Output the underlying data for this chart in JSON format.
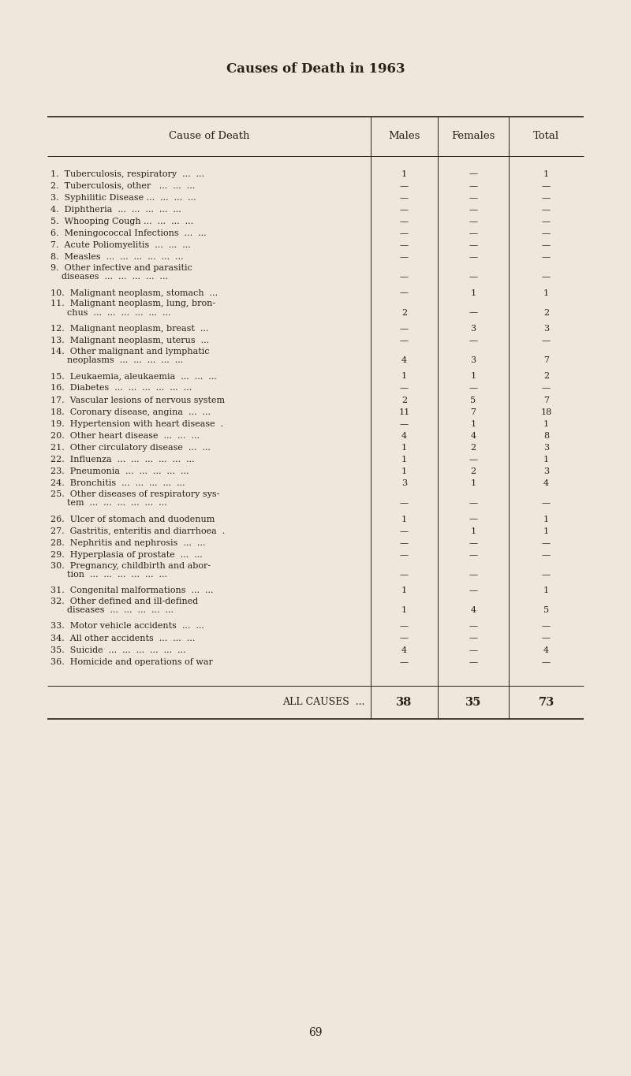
{
  "title": "Causes of Death in 1963",
  "background_color": "#ede8da",
  "text_color": "#2a2018",
  "header": [
    "Cause of Death",
    "Males",
    "Females",
    "Total"
  ],
  "rows": [
    [
      "1.  Tuberculosis, respiratory  ...  ...",
      "1",
      "—",
      "1",
      1
    ],
    [
      "2.  Tuberculosis, other   ...  ...  ...",
      "—",
      "—",
      "—",
      1
    ],
    [
      "3.  Syphilitic Disease ...  ...  ...  ...",
      "—",
      "—",
      "—",
      1
    ],
    [
      "4.  Diphtheria  ...  ...  ...  ...  ...",
      "—",
      "—",
      "—",
      1
    ],
    [
      "5.  Whooping Cough ...  ...  ...  ...",
      "—",
      "—",
      "—",
      1
    ],
    [
      "6.  Meningococcal Infections  ...  ...",
      "—",
      "—",
      "—",
      1
    ],
    [
      "7.  Acute Poliomyelitis  ...  ...  ...",
      "—",
      "—",
      "—",
      1
    ],
    [
      "8.  Measles  ...  ...  ...  ...  ...  ...",
      "—",
      "—",
      "—",
      1
    ],
    [
      "9.  Other infective and parasitic|    diseases  ...  ...  ...  ...  ...",
      "—",
      "—",
      "—",
      2
    ],
    [
      "10.  Malignant neoplasm, stomach  ...",
      "—",
      "1",
      "1",
      1
    ],
    [
      "11.  Malignant neoplasm, lung, bron-|      chus  ...  ...  ...  ...  ...  ...",
      "2",
      "—",
      "2",
      2
    ],
    [
      "12.  Malignant neoplasm, breast  ...",
      "—",
      "3",
      "3",
      1
    ],
    [
      "13.  Malignant neoplasm, uterus  ...",
      "—",
      "—",
      "—",
      1
    ],
    [
      "14.  Other malignant and lymphatic|      neoplasms  ...  ...  ...  ...  ...",
      "4",
      "3",
      "7",
      2
    ],
    [
      "15.  Leukaemia, aleukaemia  ...  ...  ...",
      "1",
      "1",
      "2",
      1
    ],
    [
      "16.  Diabetes  ...  ...  ...  ...  ...  ...",
      "—",
      "—",
      "—",
      1
    ],
    [
      "17.  Vascular lesions of nervous system",
      "2",
      "5",
      "7",
      1
    ],
    [
      "18.  Coronary disease, angina  ...  ...",
      "11",
      "7",
      "18",
      1
    ],
    [
      "19.  Hypertension with heart disease  .",
      "—",
      "1",
      "1",
      1
    ],
    [
      "20.  Other heart disease  ...  ...  ...",
      "4",
      "4",
      "8",
      1
    ],
    [
      "21.  Other circulatory disease  ...  ...",
      "1",
      "2",
      "3",
      1
    ],
    [
      "22.  Influenza  ...  ...  ...  ...  ...  ...",
      "1",
      "—",
      "1",
      1
    ],
    [
      "23.  Pneumonia  ...  ...  ...  ...  ...",
      "1",
      "2",
      "3",
      1
    ],
    [
      "24.  Bronchitis  ...  ...  ...  ...  ...",
      "3",
      "1",
      "4",
      1
    ],
    [
      "25.  Other diseases of respiratory sys-|      tem  ...  ...  ...  ...  ...  ...",
      "—",
      "—",
      "—",
      2
    ],
    [
      "26.  Ulcer of stomach and duodenum",
      "1",
      "—",
      "1",
      1
    ],
    [
      "27.  Gastritis, enteritis and diarrhoea  .",
      "—",
      "1",
      "1",
      1
    ],
    [
      "28.  Nephritis and nephrosis  ...  ...",
      "—",
      "—",
      "—",
      1
    ],
    [
      "29.  Hyperplasia of prostate  ...  ...",
      "—",
      "—",
      "—",
      1
    ],
    [
      "30.  Pregnancy, childbirth and abor-|      tion  ...  ...  ...  ...  ...  ...",
      "—",
      "—",
      "—",
      2
    ],
    [
      "31.  Congenital malformations  ...  ...",
      "1",
      "—",
      "1",
      1
    ],
    [
      "32.  Other defined and ill-defined|      diseases  ...  ...  ...  ...  ...",
      "1",
      "4",
      "5",
      2
    ],
    [
      "33.  Motor vehicle accidents  ...  ...",
      "—",
      "—",
      "—",
      1
    ],
    [
      "34.  All other accidents  ...  ...  ...",
      "—",
      "—",
      "—",
      1
    ],
    [
      "35.  Suicide  ...  ...  ...  ...  ...  ...",
      "4",
      "—",
      "4",
      1
    ],
    [
      "36.  Homicide and operations of war",
      "—",
      "—",
      "—",
      1
    ]
  ],
  "footer": [
    "ALL CAUSES  ...",
    "38",
    "35",
    "73"
  ],
  "page_number": "69",
  "title_fontsize": 12,
  "header_fontsize": 9.5,
  "body_fontsize": 8.0,
  "footer_fontsize": 9.0
}
